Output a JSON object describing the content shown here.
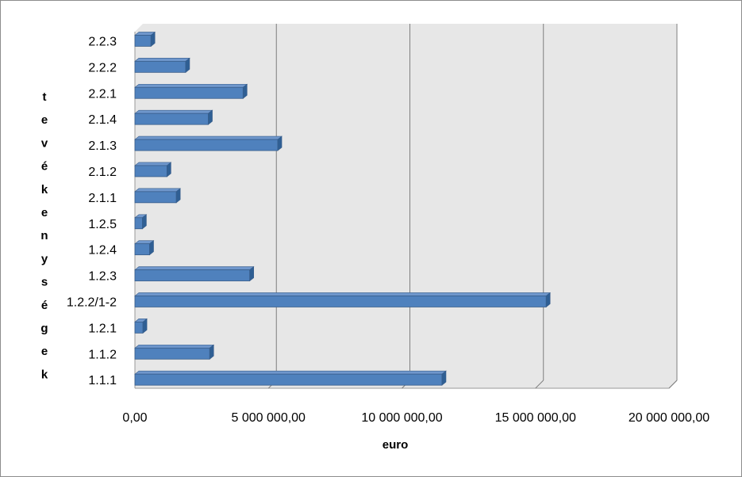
{
  "chart_data": {
    "type": "bar",
    "orientation": "horizontal",
    "categories": [
      "1.1.1",
      "1.1.2",
      "1.2.1",
      "1.2.2/1-2",
      "1.2.3",
      "1.2.4",
      "1.2.5",
      "2.1.1",
      "2.1.2",
      "2.1.3",
      "2.1.4",
      "2.2.1",
      "2.2.2",
      "2.2.3"
    ],
    "values": [
      11500000,
      2800000,
      300000,
      15400000,
      4300000,
      550000,
      280000,
      1550000,
      1200000,
      5350000,
      2750000,
      4050000,
      1900000,
      600000
    ],
    "xlabel": "euro",
    "ylabel": "tevékenységek",
    "ylabel_letters": [
      "t",
      "e",
      "v",
      "é",
      "k",
      "e",
      "n",
      "y",
      "s",
      "é",
      "g",
      "e",
      "k"
    ],
    "xlim": [
      0,
      20000000
    ],
    "xticks": [
      0,
      5000000,
      10000000,
      15000000,
      20000000
    ],
    "xtick_labels": [
      "0,00",
      "5 000 000,00",
      "10 000 000,00",
      "15 000 000,00",
      "20 000 000,00"
    ],
    "grid": "vertical",
    "legend": "none",
    "colors": {
      "bar_front": "#4f81bd",
      "bar_top": "#6f97cc",
      "bar_side": "#2f5f94",
      "bar_edge": "#385d8a",
      "plot_wall": "#e7e7e7",
      "gridline": "#7f7f7f"
    }
  }
}
